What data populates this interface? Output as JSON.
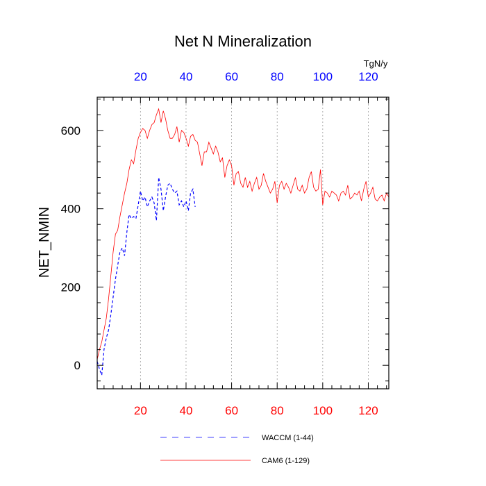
{
  "chart_data": {
    "type": "line",
    "title": "Net N Mineralization",
    "ylabel": "NET_NMIN",
    "top_axis_unit": "TgN/y",
    "xlim": [
      1,
      129
    ],
    "ylim": [
      -60,
      685
    ],
    "x_ticks": [
      20,
      40,
      60,
      80,
      100,
      120
    ],
    "y_ticks": [
      0,
      200,
      400,
      600
    ],
    "grid": "vertical dotted at x ticks",
    "legend_position": "bottom",
    "colors": {
      "bottom_ticks": "#ff0000",
      "top_ticks": "#0000ff"
    },
    "series": [
      {
        "name": "WACCM (1-44)",
        "color": "#0000ff",
        "dash": "dashed",
        "x": [
          1,
          2,
          3,
          4,
          5,
          6,
          7,
          8,
          9,
          10,
          11,
          12,
          13,
          14,
          15,
          16,
          17,
          18,
          19,
          20,
          21,
          22,
          23,
          24,
          25,
          26,
          27,
          28,
          29,
          30,
          31,
          32,
          33,
          34,
          35,
          36,
          37,
          38,
          39,
          40,
          41,
          42,
          43,
          44
        ],
        "y": [
          10,
          -10,
          -25,
          40,
          70,
          90,
          130,
          175,
          220,
          255,
          290,
          300,
          280,
          340,
          385,
          375,
          380,
          375,
          410,
          445,
          420,
          430,
          405,
          420,
          430,
          415,
          370,
          480,
          450,
          395,
          430,
          460,
          465,
          450,
          440,
          445,
          410,
          420,
          405,
          420,
          395,
          440,
          450,
          405
        ]
      },
      {
        "name": "CAM6 (1-129)",
        "color": "#ff0000",
        "dash": "solid",
        "x": [
          1,
          2,
          3,
          4,
          5,
          6,
          7,
          8,
          9,
          10,
          11,
          12,
          13,
          14,
          15,
          16,
          17,
          18,
          19,
          20,
          21,
          22,
          23,
          24,
          25,
          26,
          27,
          28,
          29,
          30,
          31,
          32,
          33,
          34,
          35,
          36,
          37,
          38,
          39,
          40,
          41,
          42,
          43,
          44,
          45,
          46,
          47,
          48,
          49,
          50,
          51,
          52,
          53,
          54,
          55,
          56,
          57,
          58,
          59,
          60,
          61,
          62,
          63,
          64,
          65,
          66,
          67,
          68,
          69,
          70,
          71,
          72,
          73,
          74,
          75,
          76,
          77,
          78,
          79,
          80,
          81,
          82,
          83,
          84,
          85,
          86,
          87,
          88,
          89,
          90,
          91,
          92,
          93,
          94,
          95,
          96,
          97,
          98,
          99,
          100,
          101,
          102,
          103,
          104,
          105,
          106,
          107,
          108,
          109,
          110,
          111,
          112,
          113,
          114,
          115,
          116,
          117,
          118,
          119,
          120,
          121,
          122,
          123,
          124,
          125,
          126,
          127,
          128,
          129
        ],
        "y": [
          15,
          40,
          60,
          90,
          120,
          170,
          230,
          290,
          335,
          345,
          380,
          410,
          440,
          465,
          500,
          525,
          515,
          550,
          580,
          595,
          605,
          600,
          580,
          600,
          615,
          620,
          640,
          655,
          620,
          650,
          630,
          600,
          580,
          580,
          590,
          610,
          570,
          600,
          595,
          580,
          560,
          585,
          590,
          575,
          570,
          540,
          510,
          545,
          545,
          570,
          555,
          540,
          560,
          545,
          520,
          530,
          480,
          510,
          525,
          510,
          460,
          490,
          495,
          465,
          455,
          480,
          455,
          470,
          445,
          465,
          480,
          450,
          460,
          490,
          470,
          455,
          440,
          450,
          470,
          415,
          460,
          470,
          450,
          465,
          455,
          440,
          460,
          480,
          450,
          445,
          460,
          440,
          450,
          480,
          495,
          455,
          445,
          450,
          500,
          410,
          445,
          440,
          430,
          445,
          440,
          435,
          420,
          440,
          445,
          435,
          460,
          425,
          430,
          440,
          435,
          445,
          420,
          450,
          470,
          430,
          440,
          455,
          425,
          420,
          430,
          435,
          420,
          440,
          430
        ]
      }
    ]
  }
}
